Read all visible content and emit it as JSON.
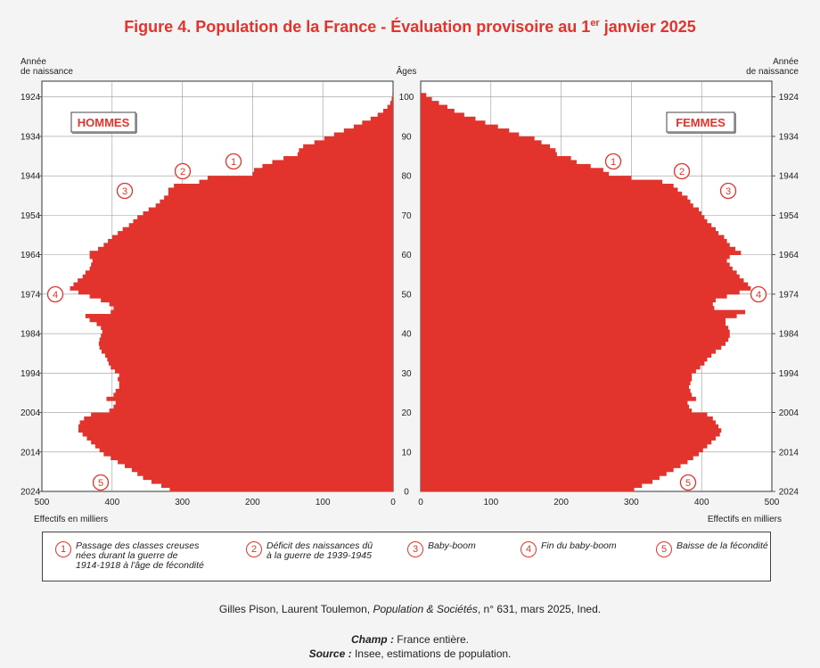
{
  "title_main": "Figure 4. Population de la France - Évaluation provisoire au 1",
  "title_sup": "er",
  "title_end": " janvier 2025",
  "header_birth_year_line1": "Année",
  "header_birth_year_line2": "de naissance",
  "header_ages": "Âges",
  "label_men": "HOMMES",
  "label_women": "FEMMES",
  "xaxis_label": "Effectifs en milliers",
  "colors": {
    "bars": "#e2342c",
    "title": "#e2342c"
  },
  "legend": [
    {
      "num": "1",
      "text": "Passage des classes creuses\nnées durant la guerre de\n1914-1918 à l'âge de fécondité"
    },
    {
      "num": "2",
      "text": "Déficit des naissances dû\nà la guerre de 1939-1945"
    },
    {
      "num": "3",
      "text": "Baby-boom"
    },
    {
      "num": "4",
      "text": "Fin du baby-boom"
    },
    {
      "num": "5",
      "text": "Baisse de la fécondité"
    }
  ],
  "credit": {
    "authors": "Gilles Pison, Laurent Toulemon, ",
    "journal": "Population & Sociétés",
    "rest": ", n° 631, mars 2025, Ined."
  },
  "champ": {
    "label": "Champ :",
    "text": " France entière."
  },
  "source": {
    "label": "Source :",
    "text": " Insee, estimations de population."
  },
  "chart_data": {
    "type": "bar",
    "orientation": "horizontal-pyramid",
    "age_ticks": [
      0,
      10,
      20,
      30,
      40,
      50,
      60,
      70,
      80,
      90,
      100
    ],
    "birth_year_ticks": [
      2024,
      2014,
      2004,
      1994,
      1984,
      1974,
      1964,
      1954,
      1944,
      1934,
      1924
    ],
    "x_ticks": [
      500,
      400,
      300,
      200,
      100,
      0
    ],
    "xlim": [
      0,
      500
    ],
    "ylim": [
      0,
      101
    ],
    "series": [
      {
        "name": "HOMMES",
        "ages": [
          0,
          1,
          2,
          3,
          4,
          5,
          6,
          7,
          8,
          9,
          10,
          11,
          12,
          13,
          14,
          15,
          16,
          17,
          18,
          19,
          20,
          21,
          22,
          23,
          24,
          25,
          26,
          27,
          28,
          29,
          30,
          31,
          32,
          33,
          34,
          35,
          36,
          37,
          38,
          39,
          40,
          41,
          42,
          43,
          44,
          45,
          46,
          47,
          48,
          49,
          50,
          51,
          52,
          53,
          54,
          55,
          56,
          57,
          58,
          59,
          60,
          61,
          62,
          63,
          64,
          65,
          66,
          67,
          68,
          69,
          70,
          71,
          72,
          73,
          74,
          75,
          76,
          77,
          78,
          79,
          80,
          81,
          82,
          83,
          84,
          85,
          86,
          87,
          88,
          89,
          90,
          91,
          92,
          93,
          94,
          95,
          96,
          97,
          98,
          99,
          100
        ],
        "values": [
          318,
          330,
          344,
          356,
          364,
          372,
          382,
          392,
          402,
          412,
          418,
          424,
          430,
          436,
          442,
          448,
          448,
          446,
          440,
          430,
          404,
          398,
          395,
          408,
          398,
          395,
          390,
          390,
          392,
          390,
          396,
          402,
          405,
          407,
          410,
          415,
          418,
          419,
          418,
          416,
          414,
          416,
          422,
          432,
          438,
          402,
          398,
          404,
          416,
          432,
          448,
          460,
          455,
          449,
          442,
          438,
          432,
          430,
          428,
          432,
          432,
          420,
          412,
          406,
          400,
          392,
          385,
          376,
          370,
          364,
          356,
          348,
          338,
          332,
          326,
          320,
          320,
          312,
          276,
          264,
          200,
          198,
          186,
          172,
          156,
          136,
          134,
          128,
          112,
          98,
          84,
          70,
          56,
          44,
          32,
          22,
          14,
          8,
          4,
          2,
          1
        ]
      },
      {
        "name": "FEMMES",
        "ages": [
          0,
          1,
          2,
          3,
          4,
          5,
          6,
          7,
          8,
          9,
          10,
          11,
          12,
          13,
          14,
          15,
          16,
          17,
          18,
          19,
          20,
          21,
          22,
          23,
          24,
          25,
          26,
          27,
          28,
          29,
          30,
          31,
          32,
          33,
          34,
          35,
          36,
          37,
          38,
          39,
          40,
          41,
          42,
          43,
          44,
          45,
          46,
          47,
          48,
          49,
          50,
          51,
          52,
          53,
          54,
          55,
          56,
          57,
          58,
          59,
          60,
          61,
          62,
          63,
          64,
          65,
          66,
          67,
          68,
          69,
          70,
          71,
          72,
          73,
          74,
          75,
          76,
          77,
          78,
          79,
          80,
          81,
          82,
          83,
          84,
          85,
          86,
          87,
          88,
          89,
          90,
          91,
          92,
          93,
          94,
          95,
          96,
          97,
          98,
          99,
          100
        ],
        "values": [
          304,
          315,
          330,
          340,
          350,
          360,
          370,
          380,
          388,
          396,
          402,
          408,
          414,
          420,
          426,
          428,
          424,
          420,
          416,
          408,
          386,
          382,
          380,
          392,
          386,
          384,
          382,
          384,
          386,
          386,
          392,
          398,
          404,
          408,
          414,
          420,
          428,
          434,
          438,
          440,
          440,
          438,
          434,
          434,
          450,
          462,
          418,
          416,
          420,
          436,
          454,
          470,
          466,
          460,
          454,
          450,
          444,
          440,
          436,
          440,
          456,
          448,
          440,
          436,
          432,
          424,
          420,
          414,
          408,
          404,
          400,
          396,
          388,
          384,
          380,
          372,
          366,
          360,
          344,
          300,
          268,
          260,
          242,
          222,
          214,
          194,
          192,
          184,
          172,
          162,
          140,
          126,
          110,
          92,
          78,
          62,
          48,
          38,
          26,
          16,
          8
        ]
      }
    ],
    "annotations": [
      "1",
      "2",
      "3",
      "4",
      "5"
    ]
  }
}
